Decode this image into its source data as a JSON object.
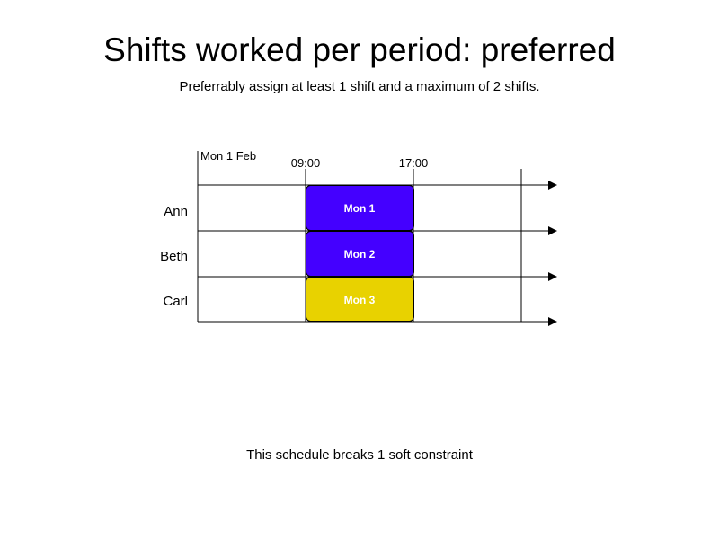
{
  "title": "Shifts worked per period: preferred",
  "subtitle": "Preferrably assign at least 1 shift and a maximum of 2 shifts.",
  "footer": "This schedule breaks 1 soft constraint",
  "timeline": {
    "date_label": "Mon 1 Feb",
    "time_labels": [
      "09:00",
      "17:00"
    ]
  },
  "employees": [
    {
      "name": "Ann"
    },
    {
      "name": "Beth"
    },
    {
      "name": "Carl"
    }
  ],
  "shifts": [
    {
      "label": "Mon 1",
      "employee": 0,
      "color": "#4400ff"
    },
    {
      "label": "Mon 2",
      "employee": 1,
      "color": "#4400ff"
    },
    {
      "label": "Mon 3",
      "employee": 2,
      "color": "#e8d200"
    }
  ]
}
